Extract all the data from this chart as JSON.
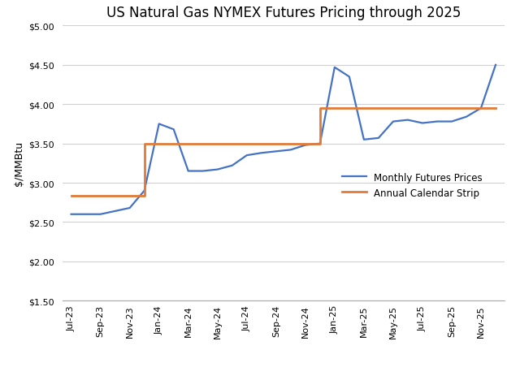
{
  "title": "US Natural Gas NYMEX Futures Pricing through 2025",
  "ylabel": "$/MMBtu",
  "ylim": [
    1.5,
    5.0
  ],
  "yticks": [
    1.5,
    2.0,
    2.5,
    3.0,
    3.5,
    4.0,
    4.5,
    5.0
  ],
  "x_labels": [
    "Jul-23",
    "Sep-23",
    "Nov-23",
    "Jan-24",
    "Mar-24",
    "May-24",
    "Jul-24",
    "Sep-24",
    "Nov-24",
    "Jan-25",
    "Mar-25",
    "May-25",
    "Jul-25",
    "Sep-25",
    "Nov-25"
  ],
  "monthly_color": "#4472C4",
  "annual_color": "#E07B39",
  "legend_labels": [
    "Monthly Futures Prices",
    "Annual Calendar Strip"
  ],
  "background_color": "#ffffff",
  "grid_color": "#d0d0d0",
  "title_fontsize": 12,
  "axis_label_fontsize": 9,
  "tick_fontsize": 8,
  "monthly_x": [
    0,
    1,
    2,
    2.5,
    3,
    3.5,
    4,
    4.5,
    5,
    5.5,
    6,
    6.5,
    7,
    7.5,
    8,
    8.5,
    9,
    9.5,
    10,
    10.5,
    11,
    11.5,
    12,
    12.5,
    13,
    13.5,
    14,
    14.5
  ],
  "monthly_y": [
    2.6,
    2.6,
    2.68,
    2.9,
    3.75,
    3.68,
    3.15,
    3.15,
    3.17,
    3.22,
    3.35,
    3.38,
    3.4,
    3.42,
    3.48,
    3.5,
    4.47,
    4.35,
    3.55,
    3.57,
    3.78,
    3.8,
    3.76,
    3.78,
    3.78,
    3.84,
    3.95,
    4.5
  ],
  "annual_x": [
    0,
    2.5,
    2.5,
    8.5,
    8.5,
    14.5
  ],
  "annual_y": [
    2.83,
    2.83,
    3.5,
    3.5,
    3.95,
    3.95
  ],
  "xlim": [
    -0.3,
    14.8
  ]
}
